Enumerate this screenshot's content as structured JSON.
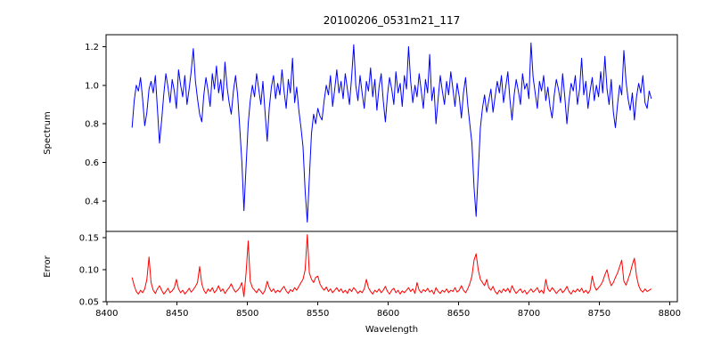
{
  "figure": {
    "background": "#ffffff",
    "title": "20100206_0531m21_117"
  },
  "chart_data": [
    {
      "type": "line",
      "name": "spectrum",
      "title": "20100206_0531m21_117",
      "xlabel": "",
      "ylabel": "Spectrum",
      "grid": false,
      "legend": "none",
      "xlim": [
        8399.5,
        8805.5
      ],
      "ylim": [
        0.242,
        1.262
      ],
      "xticks": [],
      "yticks": [
        {
          "v": 0.4,
          "label": "0.4"
        },
        {
          "v": 0.6,
          "label": "0.6"
        },
        {
          "v": 0.8,
          "label": "0.8"
        },
        {
          "v": 1.0,
          "label": "1.0"
        },
        {
          "v": 1.2,
          "label": "1.2"
        }
      ],
      "series": [
        {
          "name": "spectrum",
          "color": "#0000ff",
          "x_start": 8418,
          "x_step": 1.5,
          "values": [
            0.78,
            0.92,
            1.0,
            0.97,
            1.04,
            0.93,
            0.79,
            0.86,
            0.98,
            1.02,
            0.96,
            1.05,
            0.88,
            0.7,
            0.82,
            0.95,
            1.06,
            0.99,
            0.91,
            1.03,
            0.97,
            0.88,
            1.08,
            1.0,
            0.94,
            1.05,
            0.9,
            0.98,
            1.07,
            1.19,
            1.02,
            0.93,
            0.85,
            0.81,
            0.95,
            1.04,
            0.97,
            0.89,
            1.06,
            0.98,
            1.1,
            0.96,
            1.03,
            0.92,
            1.12,
            0.99,
            0.91,
            0.85,
            0.97,
            1.05,
            0.95,
            0.78,
            0.6,
            0.35,
            0.58,
            0.8,
            0.92,
            1.0,
            0.94,
            1.06,
            0.98,
            0.9,
            1.02,
            0.86,
            0.71,
            0.88,
            0.99,
            1.05,
            0.93,
            1.01,
            0.95,
            1.08,
            0.97,
            0.88,
            1.03,
            0.96,
            1.14,
            0.91,
            0.99,
            0.87,
            0.78,
            0.68,
            0.45,
            0.29,
            0.52,
            0.75,
            0.85,
            0.8,
            0.88,
            0.84,
            0.82,
            0.92,
            1.0,
            0.95,
            1.05,
            0.89,
            0.98,
            1.08,
            0.96,
            1.02,
            0.93,
            1.06,
            0.98,
            0.9,
            1.04,
            1.21,
            1.0,
            0.92,
            1.05,
            0.96,
            0.88,
            1.02,
            0.97,
            1.09,
            0.94,
            1.03,
            0.87,
            0.99,
            1.06,
            0.92,
            0.81,
            0.95,
            1.04,
            0.98,
            0.9,
            1.07,
            0.96,
            1.01,
            0.89,
            1.05,
            0.98,
            1.2,
            1.02,
            0.91,
            1.0,
            0.94,
            1.06,
            0.97,
            0.88,
            1.03,
            0.96,
            1.16,
            0.92,
            0.99,
            0.8,
            0.93,
            1.05,
            0.97,
            0.9,
            1.02,
            0.95,
            1.07,
            0.98,
            0.89,
            1.01,
            0.94,
            0.83,
            0.96,
            1.04,
            0.9,
            0.8,
            0.7,
            0.47,
            0.32,
            0.55,
            0.78,
            0.88,
            0.95,
            0.86,
            0.92,
            0.98,
            0.86,
            0.94,
            1.02,
            0.96,
            1.05,
            0.91,
            0.99,
            1.07,
            0.93,
            0.82,
            0.95,
            1.03,
            0.97,
            0.9,
            1.06,
            0.98,
            1.01,
            0.93,
            1.22,
            1.04,
            0.96,
            0.88,
            1.02,
            0.97,
            1.05,
            0.92,
            0.99,
            0.89,
            0.83,
            0.95,
            1.03,
            0.98,
            0.91,
            1.06,
            0.94,
            0.8,
            0.92,
            1.01,
            0.97,
            1.05,
            0.9,
            0.98,
            1.14,
            0.95,
            1.02,
            0.88,
            0.97,
            1.04,
            0.92,
            1.0,
            0.94,
            1.07,
            0.96,
            1.15,
            0.98,
            0.9,
            1.03,
            0.86,
            0.78,
            0.9,
            1.0,
            0.95,
            1.18,
            1.02,
            0.93,
            0.87,
            0.96,
            0.82,
            0.94,
            1.01,
            0.96,
            1.05,
            0.91,
            0.88,
            0.97,
            0.93
          ]
        }
      ]
    },
    {
      "type": "line",
      "name": "error",
      "title": "",
      "xlabel": "Wavelength",
      "ylabel": "Error",
      "grid": false,
      "legend": "none",
      "xlim": [
        8399.5,
        8805.5
      ],
      "ylim": [
        0.05,
        0.16
      ],
      "xticks": [
        {
          "v": 8400,
          "label": "8400"
        },
        {
          "v": 8450,
          "label": "8450"
        },
        {
          "v": 8500,
          "label": "8500"
        },
        {
          "v": 8550,
          "label": "8550"
        },
        {
          "v": 8600,
          "label": "8600"
        },
        {
          "v": 8650,
          "label": "8650"
        },
        {
          "v": 8700,
          "label": "8700"
        },
        {
          "v": 8750,
          "label": "8750"
        },
        {
          "v": 8800,
          "label": "8800"
        }
      ],
      "yticks": [
        {
          "v": 0.05,
          "label": "0.05"
        },
        {
          "v": 0.1,
          "label": "0.10"
        },
        {
          "v": 0.15,
          "label": "0.15"
        }
      ],
      "series": [
        {
          "name": "error",
          "color": "#ff0000",
          "x_start": 8418,
          "x_step": 1.5,
          "values": [
            0.088,
            0.075,
            0.066,
            0.062,
            0.068,
            0.064,
            0.07,
            0.085,
            0.12,
            0.08,
            0.068,
            0.063,
            0.07,
            0.075,
            0.068,
            0.062,
            0.066,
            0.071,
            0.064,
            0.067,
            0.072,
            0.085,
            0.07,
            0.064,
            0.068,
            0.062,
            0.066,
            0.071,
            0.065,
            0.069,
            0.074,
            0.08,
            0.105,
            0.078,
            0.068,
            0.063,
            0.07,
            0.066,
            0.072,
            0.064,
            0.068,
            0.075,
            0.066,
            0.07,
            0.063,
            0.068,
            0.072,
            0.078,
            0.07,
            0.065,
            0.068,
            0.072,
            0.08,
            0.058,
            0.095,
            0.145,
            0.082,
            0.072,
            0.068,
            0.064,
            0.07,
            0.066,
            0.062,
            0.068,
            0.082,
            0.072,
            0.066,
            0.07,
            0.064,
            0.068,
            0.065,
            0.07,
            0.074,
            0.067,
            0.063,
            0.069,
            0.066,
            0.072,
            0.068,
            0.074,
            0.08,
            0.085,
            0.1,
            0.155,
            0.095,
            0.085,
            0.08,
            0.088,
            0.09,
            0.078,
            0.072,
            0.068,
            0.073,
            0.066,
            0.07,
            0.064,
            0.068,
            0.072,
            0.066,
            0.07,
            0.064,
            0.068,
            0.063,
            0.07,
            0.066,
            0.072,
            0.068,
            0.063,
            0.067,
            0.064,
            0.07,
            0.085,
            0.072,
            0.066,
            0.062,
            0.068,
            0.065,
            0.07,
            0.064,
            0.068,
            0.074,
            0.066,
            0.062,
            0.068,
            0.071,
            0.064,
            0.068,
            0.062,
            0.067,
            0.064,
            0.068,
            0.072,
            0.066,
            0.07,
            0.063,
            0.08,
            0.068,
            0.064,
            0.069,
            0.066,
            0.071,
            0.065,
            0.068,
            0.062,
            0.072,
            0.066,
            0.063,
            0.068,
            0.065,
            0.07,
            0.064,
            0.068,
            0.066,
            0.072,
            0.065,
            0.068,
            0.075,
            0.068,
            0.064,
            0.07,
            0.078,
            0.09,
            0.115,
            0.125,
            0.1,
            0.085,
            0.08,
            0.075,
            0.085,
            0.072,
            0.068,
            0.074,
            0.066,
            0.062,
            0.068,
            0.064,
            0.07,
            0.066,
            0.071,
            0.064,
            0.075,
            0.068,
            0.063,
            0.067,
            0.07,
            0.064,
            0.068,
            0.062,
            0.066,
            0.07,
            0.065,
            0.068,
            0.072,
            0.064,
            0.068,
            0.063,
            0.085,
            0.07,
            0.066,
            0.072,
            0.068,
            0.063,
            0.067,
            0.07,
            0.064,
            0.068,
            0.074,
            0.066,
            0.062,
            0.068,
            0.065,
            0.07,
            0.066,
            0.071,
            0.064,
            0.068,
            0.063,
            0.068,
            0.09,
            0.075,
            0.068,
            0.072,
            0.076,
            0.082,
            0.092,
            0.1,
            0.085,
            0.075,
            0.08,
            0.088,
            0.095,
            0.105,
            0.115,
            0.082,
            0.076,
            0.085,
            0.095,
            0.108,
            0.118,
            0.09,
            0.075,
            0.068,
            0.065,
            0.07,
            0.066,
            0.068,
            0.07
          ]
        }
      ]
    }
  ]
}
